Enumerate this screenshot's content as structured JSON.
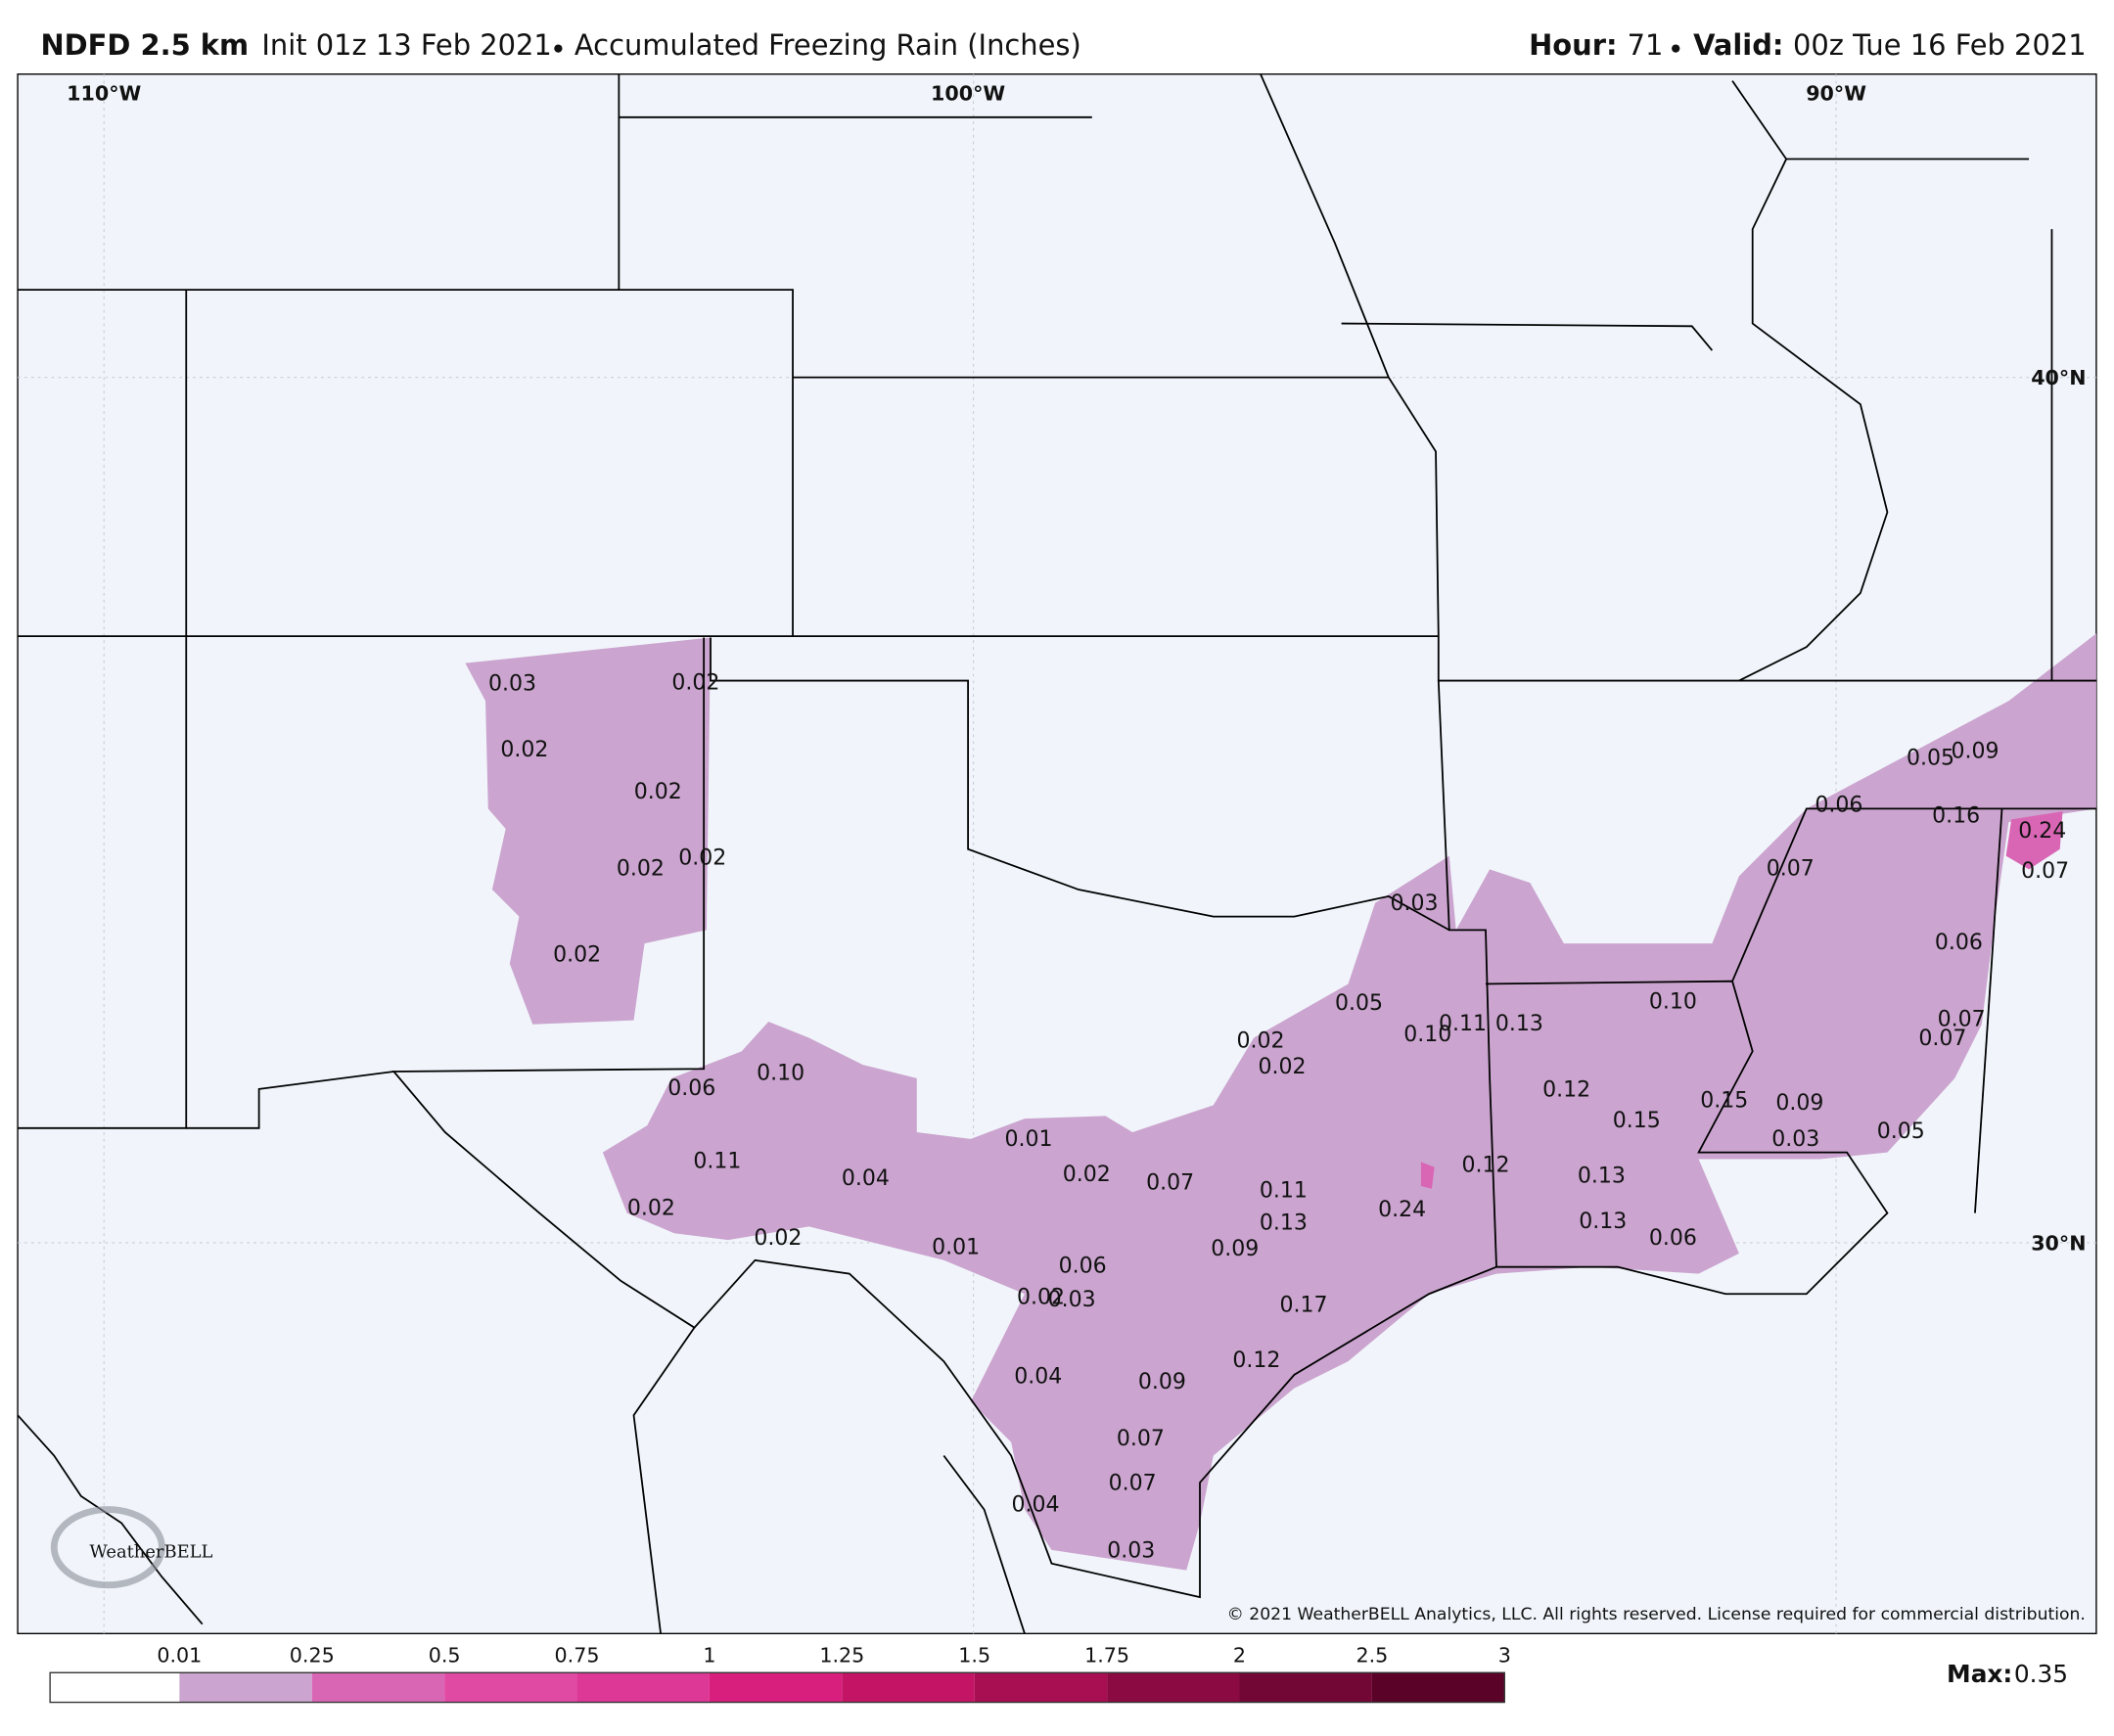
{
  "header": {
    "model": "NDFD 2.5 km",
    "init": "Init 01z 13 Feb 2021",
    "field": "Accumulated Freezing Rain (Inches)",
    "hour_label": "Hour:",
    "hour": "71",
    "valid_label": "Valid:",
    "valid": "00z Tue 16 Feb 2021"
  },
  "grid_labels": [
    "110°W",
    "100°W",
    "90°W",
    "40°N",
    "30°N"
  ],
  "map_labels": [
    "0.03",
    "0.02",
    "0.02",
    "0.02",
    "0.02",
    "0.02",
    "0.02",
    "0.10",
    "0.06",
    "0.11",
    "0.04",
    "0.02",
    "0.02",
    "0.01",
    "0.01",
    "0.02",
    "0.07",
    "0.11",
    "0.13",
    "0.09",
    "0.24",
    "0.12",
    "0.17",
    "0.06",
    "0.02",
    "0.03",
    "0.04",
    "0.09",
    "0.12",
    "0.07",
    "0.07",
    "0.04",
    "0.03",
    "0.02",
    "0.02",
    "0.05",
    "0.10",
    "0.11",
    "0.13",
    "0.03",
    "0.12",
    "0.15",
    "0.13",
    "0.13",
    "0.06",
    "0.10",
    "0.15",
    "0.09",
    "0.03",
    "0.05",
    "0.07",
    "0.06",
    "0.05",
    "0.09",
    "0.16",
    "0.24",
    "0.07",
    "0.06",
    "0.07",
    "0.07"
  ],
  "logo": "WeatherBELL",
  "copyright": "© 2021 WeatherBELL Analytics, LLC. All rights reserved. License required for commercial distribution.",
  "colorbar": {
    "ticks": [
      "0.01",
      "0.25",
      "0.5",
      "0.75",
      "1",
      "1.25",
      "1.5",
      "1.75",
      "2",
      "2.5",
      "3"
    ],
    "colors": [
      "#ffffff",
      "#cba5cf",
      "#d966b4",
      "#e04aa3",
      "#de3897",
      "#d91f7d",
      "#c41465",
      "#a80e52",
      "#8c0a42",
      "#720635",
      "#5a0228"
    ]
  },
  "max_label": "Max:",
  "max_value": "0.35"
}
